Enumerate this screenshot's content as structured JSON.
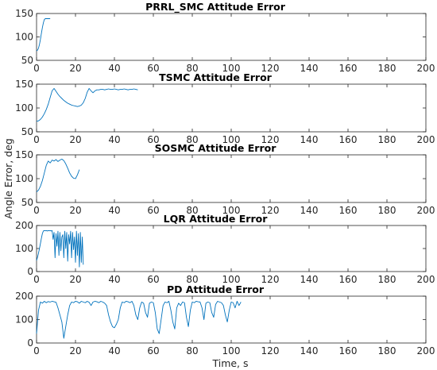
{
  "figure": {
    "ylabel": "Angle Error, deg",
    "xlabel": "Time, s",
    "line_color": "#0072BD"
  },
  "chart_data": [
    {
      "type": "line",
      "title": "PRRL_SMC Attitude Error",
      "xlim": [
        0,
        200
      ],
      "ylim": [
        50,
        150
      ],
      "xticks": [
        0,
        20,
        40,
        60,
        80,
        100,
        120,
        140,
        160,
        180,
        200
      ],
      "yticks": [
        50,
        100,
        150
      ],
      "x": [
        0,
        0.5,
        1,
        1.5,
        2,
        2.5,
        3,
        3.5,
        4,
        4.5,
        5,
        5.5,
        6,
        6.5,
        7
      ],
      "y": [
        70,
        72,
        76,
        84,
        95,
        108,
        120,
        130,
        137,
        139,
        139,
        139,
        139,
        139,
        139
      ]
    },
    {
      "type": "line",
      "title": "TSMC Attitude Error",
      "xlim": [
        0,
        200
      ],
      "ylim": [
        50,
        150
      ],
      "xticks": [
        0,
        20,
        40,
        60,
        80,
        100,
        120,
        140,
        160,
        180,
        200
      ],
      "yticks": [
        50,
        100,
        150
      ],
      "x": [
        0,
        1,
        2,
        3,
        4,
        5,
        6,
        7,
        8,
        9,
        10,
        11,
        12,
        13,
        14,
        15,
        16,
        17,
        18,
        19,
        20,
        21,
        22,
        23,
        24,
        25,
        26,
        27,
        28,
        29,
        30,
        31,
        32,
        33,
        34,
        35,
        36,
        37,
        38,
        39,
        40,
        41,
        42,
        43,
        44,
        45,
        46,
        47,
        48,
        49,
        50,
        51,
        52
      ],
      "y": [
        72,
        73,
        76,
        81,
        88,
        97,
        108,
        122,
        136,
        141,
        135,
        129,
        124,
        120,
        116,
        113,
        110,
        108,
        106,
        105,
        104,
        103,
        104,
        106,
        111,
        120,
        133,
        141,
        136,
        132,
        136,
        138,
        138,
        139,
        139,
        138,
        139,
        140,
        139,
        139,
        140,
        139,
        138,
        139,
        139,
        140,
        139,
        138,
        139,
        139,
        140,
        139,
        138
      ]
    },
    {
      "type": "line",
      "title": "SOSMC Attitude Error",
      "xlim": [
        0,
        200
      ],
      "ylim": [
        50,
        150
      ],
      "xticks": [
        0,
        20,
        40,
        60,
        80,
        100,
        120,
        140,
        160,
        180,
        200
      ],
      "yticks": [
        50,
        100,
        150
      ],
      "x": [
        0,
        1,
        2,
        3,
        4,
        5,
        6,
        7,
        8,
        9,
        10,
        11,
        12,
        13,
        14,
        15,
        16,
        17,
        18,
        19,
        20,
        21,
        22
      ],
      "y": [
        72,
        76,
        84,
        96,
        112,
        128,
        137,
        133,
        139,
        137,
        140,
        136,
        139,
        141,
        138,
        131,
        122,
        112,
        105,
        101,
        100,
        108,
        119
      ]
    },
    {
      "type": "line",
      "title": "LQR Attitude Error",
      "xlim": [
        0,
        200
      ],
      "ylim": [
        0,
        200
      ],
      "xticks": [
        0,
        20,
        40,
        60,
        80,
        100,
        120,
        140,
        160,
        180,
        200
      ],
      "yticks": [
        0,
        100,
        200
      ],
      "x": [
        0,
        0.5,
        1,
        1.5,
        2,
        2.5,
        3,
        3.5,
        4,
        4.5,
        5,
        5.5,
        6,
        6.5,
        7,
        7.5,
        8,
        8.5,
        9,
        9.5,
        10,
        10.5,
        11,
        11.5,
        12,
        12.5,
        13,
        13.5,
        14,
        14.5,
        15,
        15.5,
        16,
        16.5,
        17,
        17.5,
        18,
        18.5,
        19,
        19.5,
        20,
        20.5,
        21,
        21.5,
        22,
        22.5,
        23,
        23.5,
        24
      ],
      "y": [
        48,
        62,
        80,
        100,
        122,
        145,
        165,
        176,
        178,
        177,
        178,
        176,
        178,
        177,
        178,
        176,
        178,
        140,
        170,
        60,
        165,
        110,
        175,
        70,
        170,
        90,
        150,
        160,
        60,
        175,
        100,
        170,
        45,
        160,
        120,
        175,
        60,
        170,
        95,
        150,
        40,
        175,
        70,
        165,
        20,
        170,
        40,
        150,
        30
      ]
    },
    {
      "type": "line",
      "title": "PD Attitude Error",
      "xlim": [
        0,
        200
      ],
      "ylim": [
        0,
        200
      ],
      "xticks": [
        0,
        20,
        40,
        60,
        80,
        100,
        120,
        140,
        160,
        180,
        200
      ],
      "yticks": [
        0,
        100,
        200
      ],
      "x": [
        0,
        1,
        2,
        3,
        4,
        5,
        6,
        7,
        8,
        9,
        10,
        11,
        12,
        13,
        14,
        15,
        16,
        17,
        18,
        19,
        20,
        21,
        22,
        23,
        24,
        25,
        26,
        27,
        28,
        29,
        30,
        31,
        32,
        33,
        34,
        35,
        36,
        37,
        38,
        39,
        40,
        41,
        42,
        43,
        44,
        45,
        46,
        47,
        48,
        49,
        50,
        51,
        52,
        53,
        54,
        55,
        56,
        57,
        58,
        59,
        60,
        61,
        62,
        63,
        64,
        65,
        66,
        67,
        68,
        69,
        70,
        71,
        72,
        73,
        74,
        75,
        76,
        77,
        78,
        79,
        80,
        81,
        82,
        83,
        84,
        85,
        86,
        87,
        88,
        89,
        90,
        91,
        92,
        93,
        94,
        95,
        96,
        97,
        98,
        99,
        100,
        101,
        102,
        103,
        104,
        105
      ],
      "y": [
        40,
        140,
        175,
        170,
        178,
        172,
        177,
        175,
        178,
        176,
        174,
        150,
        120,
        90,
        20,
        70,
        120,
        160,
        175,
        172,
        178,
        176,
        170,
        178,
        175,
        172,
        178,
        174,
        160,
        175,
        178,
        176,
        172,
        178,
        175,
        170,
        160,
        120,
        90,
        70,
        65,
        80,
        100,
        150,
        175,
        172,
        178,
        176,
        172,
        178,
        160,
        120,
        100,
        150,
        175,
        170,
        130,
        110,
        170,
        175,
        172,
        130,
        60,
        40,
        100,
        160,
        175,
        172,
        178,
        140,
        90,
        60,
        150,
        170,
        160,
        175,
        172,
        110,
        70,
        140,
        175,
        172,
        178,
        176,
        175,
        150,
        100,
        170,
        175,
        172,
        130,
        110,
        165,
        178,
        175,
        172,
        160,
        120,
        90,
        140,
        175,
        172,
        150,
        178,
        160,
        175
      ]
    }
  ]
}
